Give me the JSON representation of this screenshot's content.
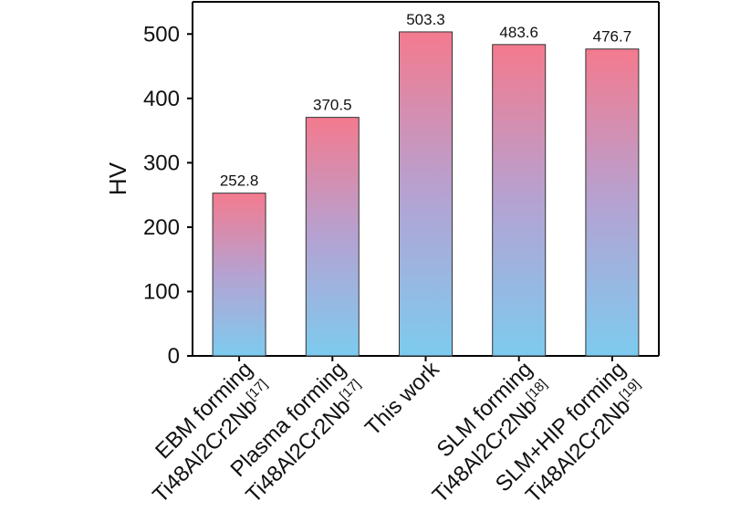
{
  "chart_data": {
    "type": "bar",
    "ylabel": "HV",
    "ylim": [
      0,
      550
    ],
    "yticks": [
      0,
      100,
      200,
      300,
      400,
      500
    ],
    "categories": [
      {
        "line1": "EBM forming",
        "line2": "Ti48Al2Cr2Nb",
        "ref": "[17]"
      },
      {
        "line1": "Plasma forming",
        "line2": "Ti48Al2Cr2Nb",
        "ref": "[17]"
      },
      {
        "line1": "This work",
        "line2": "",
        "ref": ""
      },
      {
        "line1": "SLM forming",
        "line2": "Ti48Al2Cr2Nb",
        "ref": "[18]"
      },
      {
        "line1": "SLM+HIP forming",
        "line2": "Ti48Al2Cr2Nb",
        "ref": "[19]"
      }
    ],
    "values": [
      252.8,
      370.5,
      503.3,
      483.6,
      476.7
    ],
    "value_labels": [
      "252.8",
      "370.5",
      "503.3",
      "483.6",
      "476.7"
    ],
    "grid": false,
    "colors": {
      "bar_top": "#f47a8e",
      "bar_mid": "#b5a2d2",
      "bar_bottom": "#7dcbef",
      "bar_edge": "#333333"
    }
  }
}
